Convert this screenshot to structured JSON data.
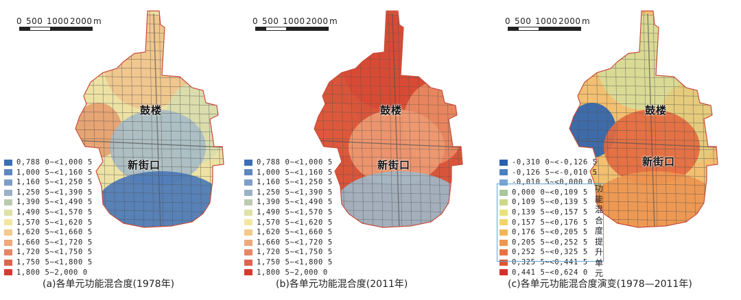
{
  "scale_bar": {
    "labels": [
      "0",
      "500",
      "1000",
      "2000"
    ],
    "unit": "m"
  },
  "panels": [
    {
      "id": "a",
      "caption": "(a)各单元功能混合度(1978年)",
      "places": [
        "鼓楼",
        "新街口"
      ],
      "legend": [
        {
          "label": "0,788 0~<1,000 5",
          "color": "#3a6fb5"
        },
        {
          "label": "1,000 5~<1,160 5",
          "color": "#5d88bf"
        },
        {
          "label": "1,160 5~<1,250 5",
          "color": "#7d9ec7"
        },
        {
          "label": "1,250 5~<1,390 5",
          "color": "#9ab2c6"
        },
        {
          "label": "1,390 5~<1,490 5",
          "color": "#bccbb0"
        },
        {
          "label": "1,490 5~<1,570 5",
          "color": "#dfe2a6"
        },
        {
          "label": "1,570 5~<1,620 5",
          "color": "#f4e6a0"
        },
        {
          "label": "1,620 5~<1,660 5",
          "color": "#f3c98c"
        },
        {
          "label": "1,660 5~<1,720 5",
          "color": "#eea97a"
        },
        {
          "label": "1,720 5~<1,750 5",
          "color": "#e78666"
        },
        {
          "label": "1,750 5~<1,800 5",
          "color": "#df6450"
        },
        {
          "label": "1,800 5~2,000 0",
          "color": "#d63a2f"
        }
      ]
    },
    {
      "id": "b",
      "caption": "(b)各单元功能混合度(2011年)",
      "places": [
        "鼓楼",
        "新街口"
      ],
      "legend": [
        {
          "label": "0,788 0~<1,000 5",
          "color": "#3a6fb5"
        },
        {
          "label": "1,000 5~<1,160 5",
          "color": "#5d88bf"
        },
        {
          "label": "1,160 5~<1,250 5",
          "color": "#7d9ec7"
        },
        {
          "label": "1,250 5~<1,390 5",
          "color": "#9ab2c6"
        },
        {
          "label": "1,390 5~<1,490 5",
          "color": "#bccbb0"
        },
        {
          "label": "1,490 5~<1,570 5",
          "color": "#dfe2a6"
        },
        {
          "label": "1,570 5~<1,620 5",
          "color": "#f4e6a0"
        },
        {
          "label": "1,620 5~<1,660 5",
          "color": "#f3c98c"
        },
        {
          "label": "1,660 5~<1,720 5",
          "color": "#eea97a"
        },
        {
          "label": "1,720 5~<1,750 5",
          "color": "#e78666"
        },
        {
          "label": "1,750 5~<1,800 5",
          "color": "#df6450"
        },
        {
          "label": "1,800 5~2,000 0",
          "color": "#d63a2f"
        }
      ]
    },
    {
      "id": "c",
      "caption": "(c)各单元功能混合度演变(1978—2011年)",
      "places": [
        "鼓楼",
        "新街口"
      ],
      "legend": [
        {
          "label": "-0,310 0~<-0,126 5",
          "color": "#2a5fae"
        },
        {
          "label": "-0,126 5~<-0,010 5",
          "color": "#4a7fc2"
        },
        {
          "label": "-0,010 5~<0,000 0",
          "color": "#7aa4d4"
        },
        {
          "label": "0,000 0~<0,109 5",
          "color": "#a9c79a"
        },
        {
          "label": "0,109 5~<0,139 5",
          "color": "#cbd98a"
        },
        {
          "label": "0,139 5~<0,157 5",
          "color": "#e8e27c"
        },
        {
          "label": "0,157 5~<0,176 5",
          "color": "#f4d46a"
        },
        {
          "label": "0,176 5~<0,205 5",
          "color": "#f3b55a"
        },
        {
          "label": "0,205 5~<0,252 5",
          "color": "#ee964c"
        },
        {
          "label": "0,252 5~<0,325 5",
          "color": "#e8733f"
        },
        {
          "label": "0,325 5~<0,441 5",
          "color": "#e05434"
        },
        {
          "label": "0,441 5~<0,624 0",
          "color": "#d6302a"
        }
      ],
      "boxed_label": "功能混合度提升单元"
    }
  ],
  "region_colors": {
    "a": {
      "north": "#f0c48c",
      "nw": "#e6a070",
      "center": "#a8bcc6",
      "south": "#4a78b8",
      "west": "#ede2a4",
      "east": "#d9dcae"
    },
    "b": {
      "north": "#d94a34",
      "nw": "#de5a3c",
      "center": "#ee9a72",
      "south": "#9fb7c8",
      "west": "#d9553a",
      "east": "#e98a62"
    },
    "c": {
      "north": "#d8dc98",
      "nw": "#2f64ae",
      "center": "#e46a40",
      "south": "#ee9650",
      "west": "#f2c070",
      "east": "#e4cc7c"
    }
  }
}
